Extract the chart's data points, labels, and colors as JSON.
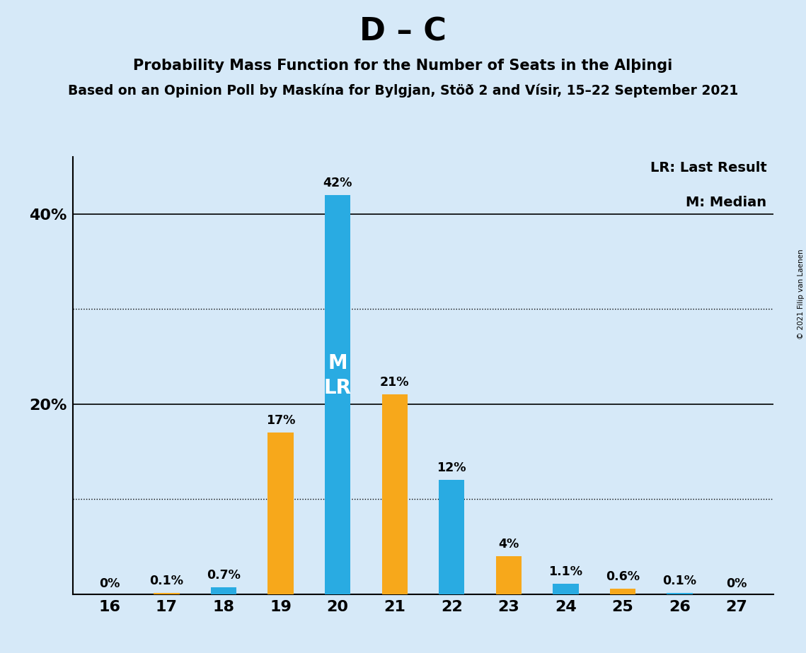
{
  "title_main": "D – C",
  "title_sub1": "Probability Mass Function for the Number of Seats in the Alþingi",
  "title_sub2": "Based on an Opinion Poll by Maskína for Bylgjan, Stöð 2 and Vísir, 15–22 September 2021",
  "copyright": "© 2021 Filip van Laenen",
  "seats": [
    16,
    17,
    18,
    19,
    20,
    21,
    22,
    23,
    24,
    25,
    26,
    27
  ],
  "probabilities_blue": [
    0.0,
    0.0,
    0.7,
    0.0,
    42.0,
    0.0,
    12.0,
    0.0,
    1.1,
    0.0,
    0.1,
    0.0
  ],
  "probabilities_orange": [
    0.0,
    0.1,
    0.0,
    17.0,
    0.0,
    21.0,
    0.0,
    4.0,
    0.0,
    0.6,
    0.0,
    0.0
  ],
  "combined_labels": [
    "0%",
    "0.1%",
    "0.7%",
    "17%",
    "42%",
    "21%",
    "12%",
    "4%",
    "1.1%",
    "0.6%",
    "0.1%",
    "0%"
  ],
  "median_seat": 20,
  "last_result_seat": 20,
  "color_blue": "#29ABE2",
  "color_orange": "#F7A81B",
  "background_color": "#D6E9F8",
  "ylim": [
    0,
    46
  ],
  "legend_lr": "LR: Last Result",
  "legend_m": "M: Median"
}
